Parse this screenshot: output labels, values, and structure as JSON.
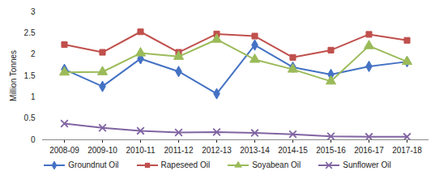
{
  "chart_data": {
    "type": "line",
    "y_label": "Million Tonnes",
    "categories": [
      "2008-09",
      "2009-10",
      "2010-11",
      "2011-12",
      "2012-13",
      "2013-14",
      "2014-15",
      "2015-16",
      "2016-17",
      "2017-18"
    ],
    "series": [
      {
        "name": "Groundnut Oil",
        "color": "#4472C4",
        "marker": "diamond",
        "values": [
          1.65,
          1.25,
          1.9,
          1.6,
          1.08,
          2.22,
          1.7,
          1.53,
          1.72,
          1.83
        ]
      },
      {
        "name": "Rapeseed Oil",
        "color": "#C0504D",
        "marker": "square",
        "values": [
          2.23,
          2.05,
          2.53,
          2.05,
          2.48,
          2.43,
          1.93,
          2.1,
          2.47,
          2.33
        ]
      },
      {
        "name": "Soyabean Oil",
        "color": "#9BBB59",
        "marker": "triangle",
        "values": [
          1.58,
          1.59,
          2.03,
          1.95,
          2.35,
          1.88,
          1.65,
          1.37,
          2.2,
          1.83
        ]
      },
      {
        "name": "Sunflower Oil",
        "color": "#8064A2",
        "marker": "x",
        "values": [
          0.38,
          0.28,
          0.21,
          0.17,
          0.18,
          0.16,
          0.13,
          0.08,
          0.07,
          0.07
        ]
      }
    ],
    "ylim": [
      0,
      3
    ],
    "yticks": [
      0,
      0.5,
      1,
      1.5,
      2,
      2.5,
      3
    ],
    "grid": false,
    "legend": "bottom"
  }
}
